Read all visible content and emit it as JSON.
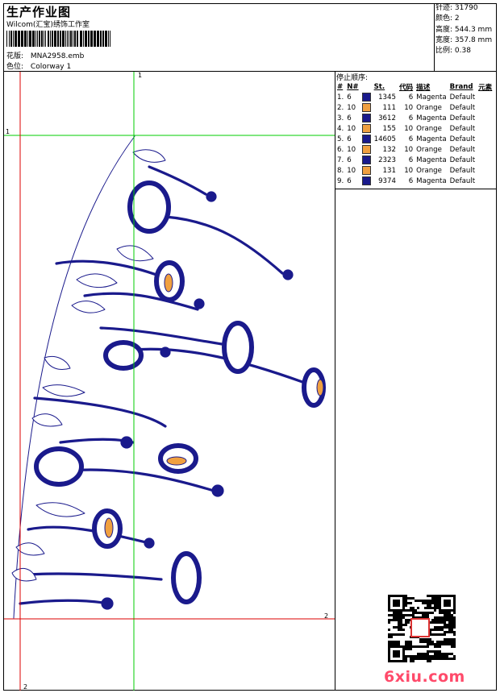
{
  "header": {
    "title": "生产作业图",
    "studio": "Wilcom(汇宝)绣饰工作室",
    "design_label": "花版:",
    "design_value": "MNA2958.emb",
    "colorway_label": "色位:",
    "colorway_value": "Colorway 1"
  },
  "stats": {
    "stitches_label": "针迹:",
    "stitches_value": "31790",
    "colors_label": "颜色:",
    "colors_value": "2",
    "height_label": "高度:",
    "height_value": "544.3 mm",
    "width_label": "宽度:",
    "width_value": "357.8 mm",
    "scale_label": "比例:",
    "scale_value": "0.38"
  },
  "stop_sequence": {
    "heading": "停止顺序:",
    "columns": [
      "#",
      "N#",
      "",
      "St.",
      "代码",
      "描述",
      "Brand",
      "元素"
    ],
    "rows": [
      {
        "idx": "1.",
        "n": "6",
        "color": "#1a1a8c",
        "st": "1345",
        "code": "6",
        "desc": "Magenta",
        "brand": "Default"
      },
      {
        "idx": "2.",
        "n": "10",
        "color": "#f0a040",
        "st": "111",
        "code": "10",
        "desc": "Orange",
        "brand": "Default"
      },
      {
        "idx": "3.",
        "n": "6",
        "color": "#1a1a8c",
        "st": "3612",
        "code": "6",
        "desc": "Magenta",
        "brand": "Default"
      },
      {
        "idx": "4.",
        "n": "10",
        "color": "#f0a040",
        "st": "155",
        "code": "10",
        "desc": "Orange",
        "brand": "Default"
      },
      {
        "idx": "5.",
        "n": "6",
        "color": "#1a1a8c",
        "st": "14605",
        "code": "6",
        "desc": "Magenta",
        "brand": "Default"
      },
      {
        "idx": "6.",
        "n": "10",
        "color": "#f0a040",
        "st": "132",
        "code": "10",
        "desc": "Orange",
        "brand": "Default"
      },
      {
        "idx": "7.",
        "n": "6",
        "color": "#1a1a8c",
        "st": "2323",
        "code": "6",
        "desc": "Magenta",
        "brand": "Default"
      },
      {
        "idx": "8.",
        "n": "10",
        "color": "#f0a040",
        "st": "131",
        "code": "10",
        "desc": "Orange",
        "brand": "Default"
      },
      {
        "idx": "9.",
        "n": "6",
        "color": "#1a1a8c",
        "st": "9374",
        "code": "6",
        "desc": "Magenta",
        "brand": "Default"
      }
    ]
  },
  "guides": {
    "green_v_label": "1",
    "green_h_label": "1",
    "red_h_label": "2",
    "red_v_label": "2",
    "green_color": "#00cc00",
    "red_color": "#dd0000"
  },
  "design": {
    "thread_main": "#1a1a8c",
    "thread_accent": "#f0a040"
  },
  "watermark": {
    "text": "6xiu.com"
  }
}
